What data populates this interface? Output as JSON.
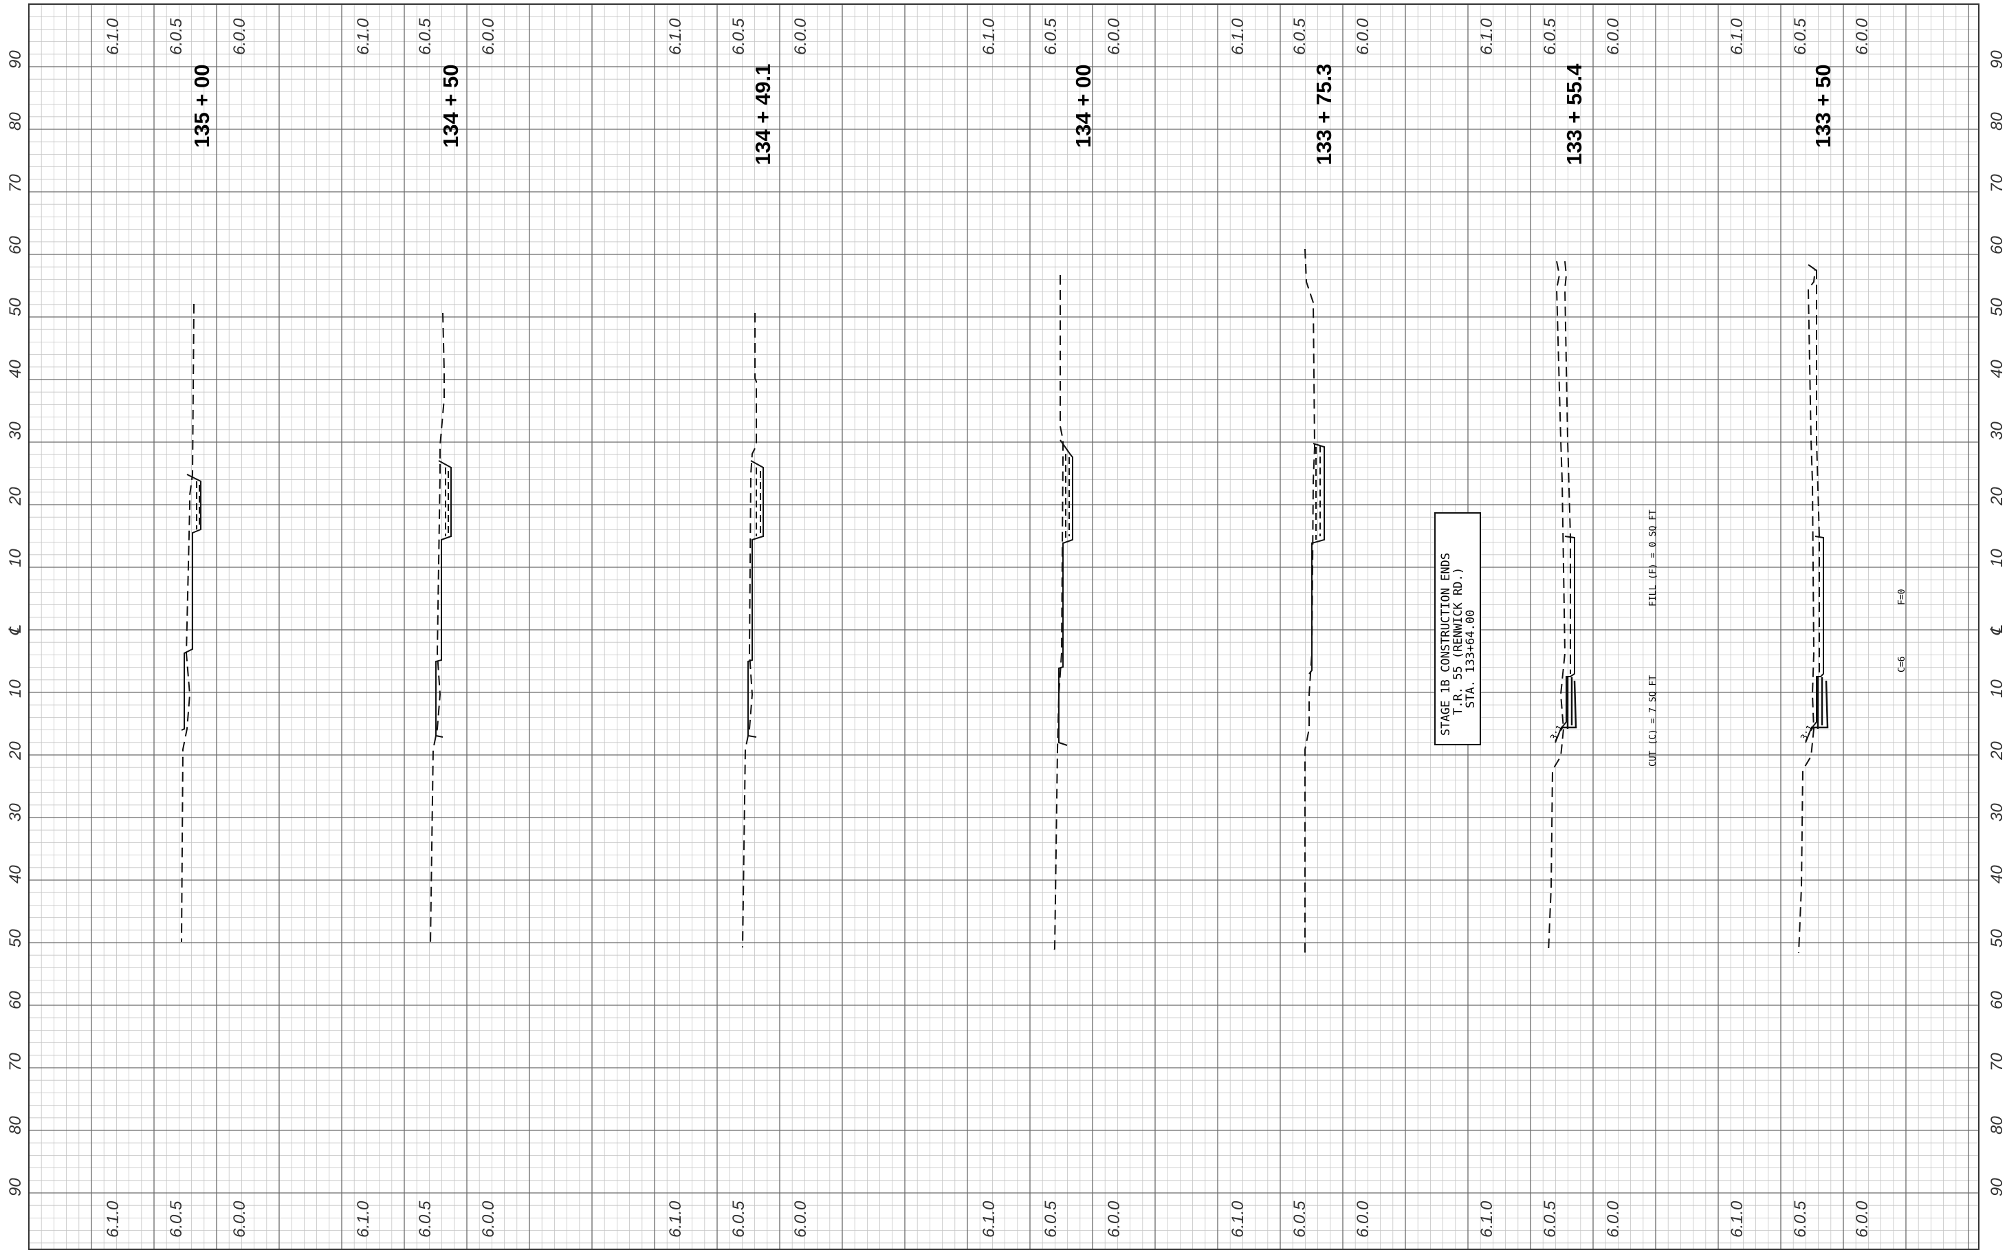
{
  "sheet": {
    "offset_labels": [
      "90",
      "80",
      "70",
      "60",
      "50",
      "40",
      "30",
      "20",
      "10",
      "℄",
      "10",
      "20",
      "30",
      "40",
      "50",
      "60",
      "70",
      "80",
      "90"
    ],
    "elevation_labels": [
      "6.1.0",
      "6.0.5",
      "6.0.0"
    ]
  },
  "sections": [
    {
      "station": "135 + 00"
    },
    {
      "station": "134 + 50"
    },
    {
      "station": "134 + 49.1"
    },
    {
      "station": "134 + 00"
    },
    {
      "station": "133 + 75.3"
    },
    {
      "station": "133 + 55.4"
    },
    {
      "station": "133 + 50"
    }
  ],
  "note_box": {
    "line1": "STAGE 1B CONSTRUCTION ENDS",
    "line2": "T.R. 55 (RENWICK RD.)",
    "line3": "STA. 133+64.00"
  },
  "quantities": {
    "cut": "CUT (C) = 7 SQ FT",
    "fill": "FILL (F) = 0 SQ FT",
    "c_short": "C=6",
    "f_short": "F=0"
  },
  "slope_labels": {
    "left": "3:1",
    "right": "3:1"
  },
  "colors": {
    "grid_minor": "#c4c4c4",
    "grid_major": "#6a6a6a",
    "ink": "#111111"
  }
}
